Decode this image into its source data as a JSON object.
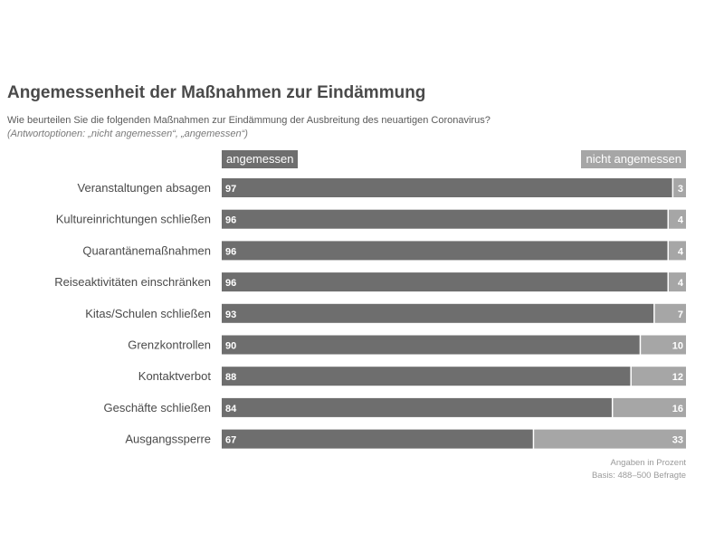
{
  "title": "Angemessenheit der Maßnahmen zur Eindämmung",
  "subtitle": "Wie beurteilen Sie die folgenden Maßnahmen zur Eindämmung der Ausbreitung des neuartigen Coronavirus?",
  "options_note": "(Antwortoptionen: „nicht angemessen“, „angemessen“)",
  "footnote": {
    "unit": "Angaben in Prozent",
    "basis": "Basis: 488–500 Befragte"
  },
  "chart_data": {
    "type": "bar",
    "orientation": "horizontal",
    "stacked": true,
    "categories": [
      "Veranstaltungen absagen",
      "Kultureinrichtungen schließen",
      "Quarantänemaßnahmen",
      "Reiseaktivitäten einschränken",
      "Kitas/Schulen schließen",
      "Grenzkontrollen",
      "Kontaktverbot",
      "Geschäfte schließen",
      "Ausgangssperre"
    ],
    "series": [
      {
        "name": "angemessen",
        "values": [
          97,
          96,
          96,
          96,
          93,
          90,
          88,
          84,
          67
        ],
        "color": "#6e6e6e"
      },
      {
        "name": "nicht angemessen",
        "values": [
          3,
          4,
          4,
          4,
          7,
          10,
          12,
          16,
          33
        ],
        "color": "#a6a6a6"
      }
    ],
    "xlim": [
      0,
      100
    ],
    "legend_position": "top"
  }
}
